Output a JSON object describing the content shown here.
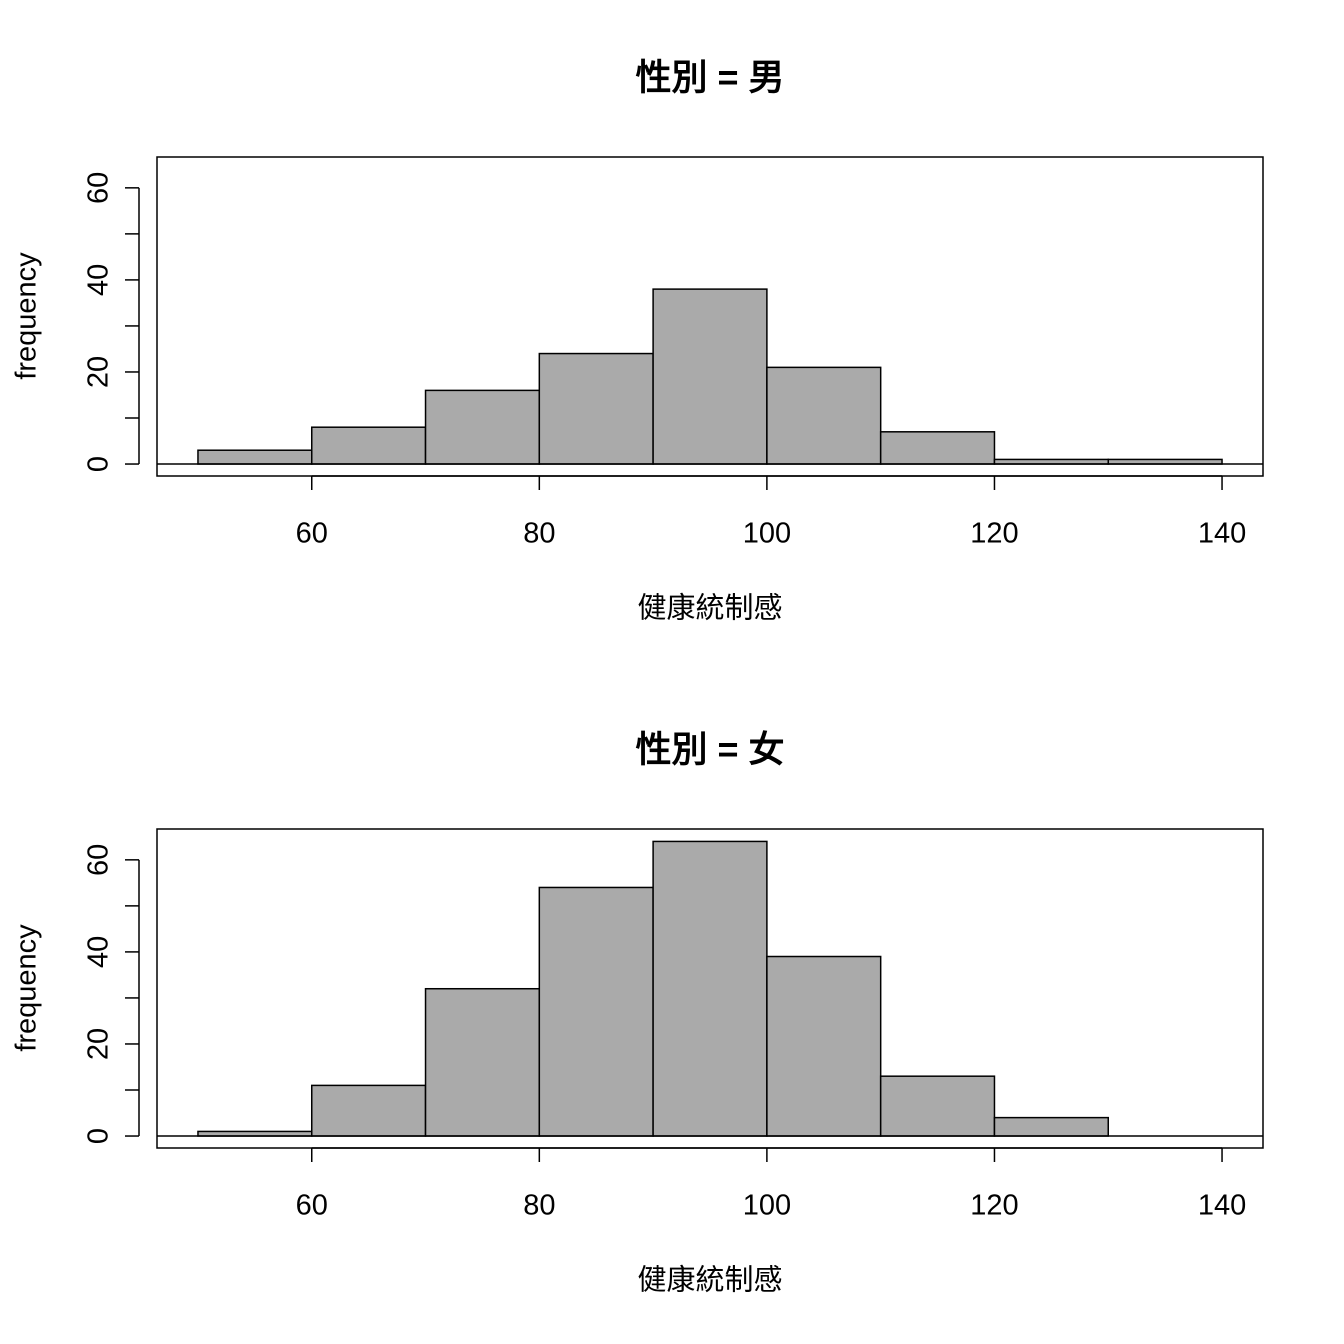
{
  "chart_data": [
    {
      "type": "histogram",
      "title": "性別 = 男",
      "xlabel": "健康統制感",
      "ylabel": "frequency",
      "bins": [
        50,
        60,
        70,
        80,
        90,
        100,
        110,
        120,
        130,
        140
      ],
      "values": [
        3,
        8,
        16,
        24,
        38,
        21,
        7,
        1,
        1
      ],
      "color": "#aaaaaa",
      "xlim": [
        46.4,
        143.6
      ],
      "ylim": [
        -2.6,
        66.7
      ],
      "xticks": [
        60,
        80,
        100,
        120,
        140
      ],
      "yticks": [
        0,
        20,
        40,
        60
      ],
      "yminorticks": [
        10,
        30,
        50
      ]
    },
    {
      "type": "histogram",
      "title": "性別 = 女",
      "xlabel": "健康統制感",
      "ylabel": "frequency",
      "bins": [
        50,
        60,
        70,
        80,
        90,
        100,
        110,
        120,
        130,
        140
      ],
      "values": [
        1,
        11,
        32,
        54,
        64,
        39,
        13,
        4,
        0
      ],
      "color": "#aaaaaa",
      "xlim": [
        46.4,
        143.6
      ],
      "ylim": [
        -2.6,
        66.7
      ],
      "xticks": [
        60,
        80,
        100,
        120,
        140
      ],
      "yticks": [
        0,
        20,
        40,
        60
      ],
      "yminorticks": [
        10,
        30,
        50
      ]
    }
  ]
}
